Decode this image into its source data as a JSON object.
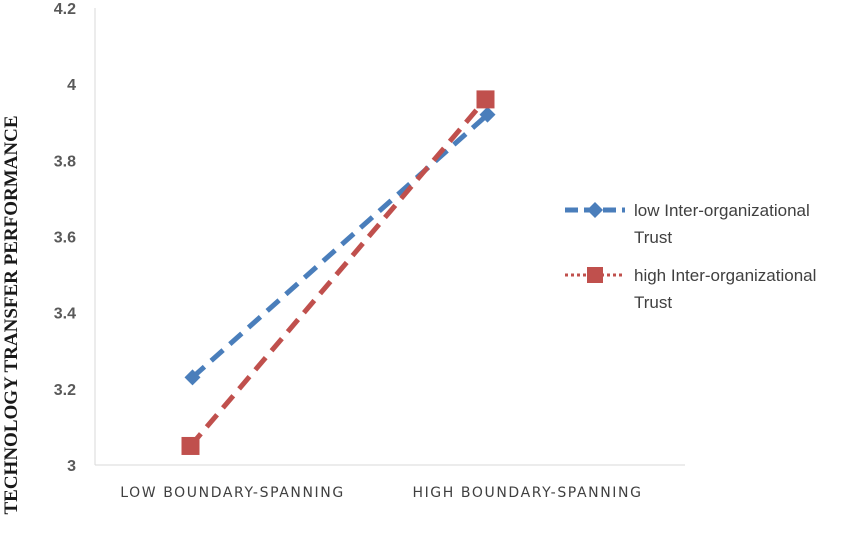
{
  "chart_data": {
    "type": "line",
    "categories": [
      "LOW BOUNDARY-SPANNING",
      "HIGH BOUNDARY-SPANNING"
    ],
    "series": [
      {
        "name": "low Inter-organizational Trust",
        "values": [
          3.23,
          3.92
        ],
        "color": "#4a7ebb",
        "line_style": "dashed",
        "marker": "diamond"
      },
      {
        "name": "high Inter-organizational Trust",
        "values": [
          3.05,
          3.96
        ],
        "color": "#c0504d",
        "line_style": "dashed",
        "marker": "square"
      }
    ],
    "legend_labels": [
      [
        "low Inter-organizational",
        "Trust"
      ],
      [
        "high Inter-organizational",
        "Trust"
      ]
    ],
    "ylabel": "TECHNOLOGY TRANSFER PERFORMANCE",
    "ylim": [
      3,
      4.2
    ],
    "yticks": [
      "3",
      "3.2",
      "3.4",
      "3.6",
      "3.8",
      "4",
      "4.2"
    ],
    "legend_position": "right",
    "grid": false
  }
}
